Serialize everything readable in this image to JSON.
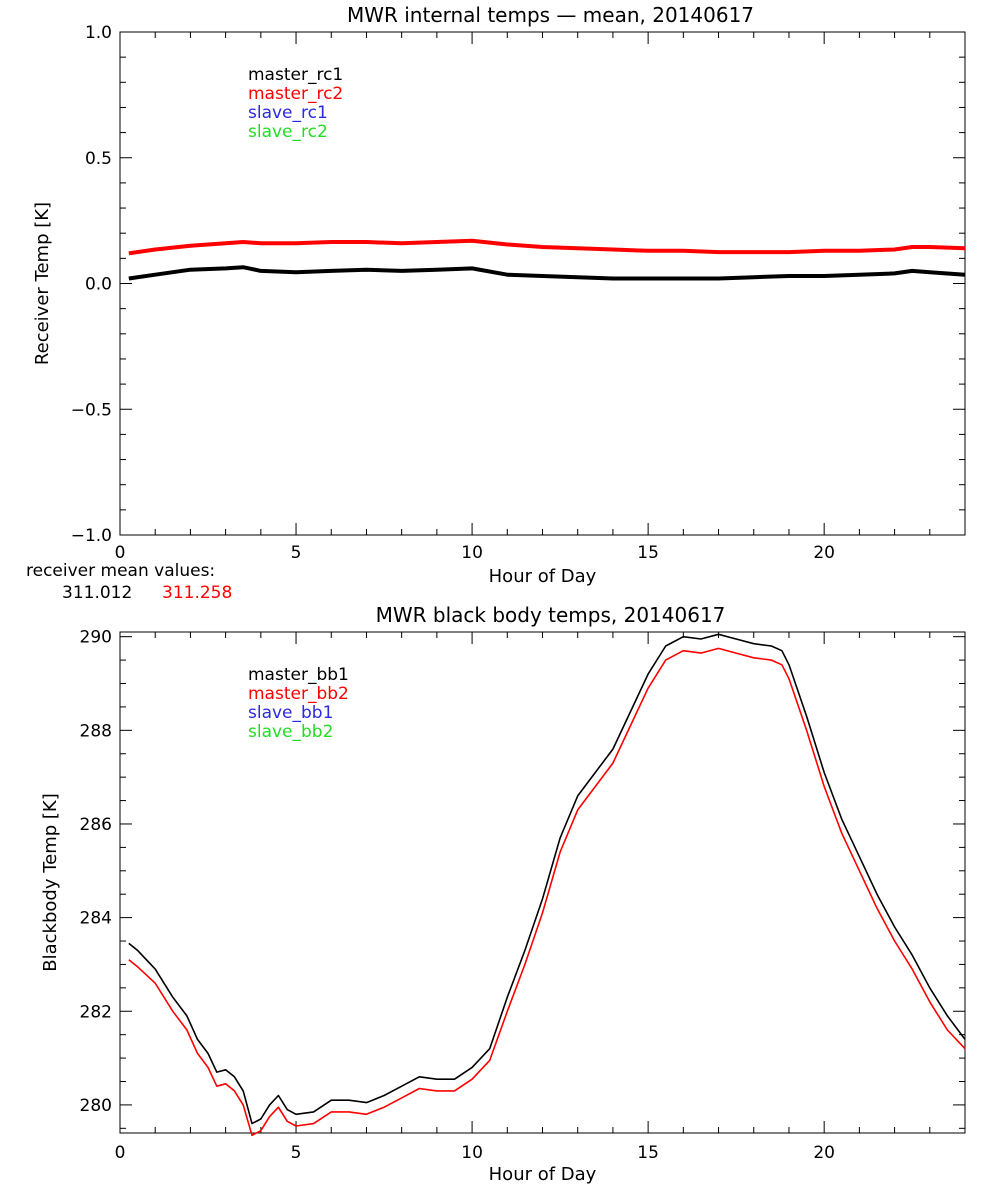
{
  "colors": {
    "black": "#000000",
    "red": "#ff0000",
    "blue": "#2a2ae0",
    "green": "#22dd22"
  },
  "receiver_mean": {
    "label": "receiver mean values:",
    "values": [
      {
        "text": "311.012",
        "color": "#000000"
      },
      {
        "text": "311.258",
        "color": "#ff0000"
      }
    ]
  },
  "chart_data": [
    {
      "type": "line",
      "title": "MWR internal temps — mean, 20140617",
      "xlabel": "Hour of Day",
      "ylabel": "Receiver Temp [K]",
      "xlim": [
        0,
        24
      ],
      "ylim": [
        -1.0,
        1.0
      ],
      "xticks": [
        0,
        5,
        10,
        15,
        20
      ],
      "xtick_labels": [
        "0",
        "5",
        "10",
        "15",
        "20"
      ],
      "yticks": [
        -1.0,
        -0.5,
        0.0,
        0.5,
        1.0
      ],
      "ytick_labels": [
        "−1.0",
        "−0.5",
        "0.0",
        "0.5",
        "1.0"
      ],
      "legend_position": "top-left",
      "legend": [
        {
          "name": "master_rc1",
          "color": "#000000"
        },
        {
          "name": "master_rc2",
          "color": "#ff0000"
        },
        {
          "name": "slave_rc1",
          "color": "#2a2ae0"
        },
        {
          "name": "slave_rc2",
          "color": "#22dd22"
        }
      ],
      "series": [
        {
          "name": "master_rc1",
          "color": "#000000",
          "x": [
            0.25,
            1,
            2,
            3,
            3.5,
            4,
            5,
            6,
            7,
            8,
            9,
            10,
            11,
            12,
            13,
            14,
            15,
            16,
            17,
            18,
            19,
            20,
            21,
            22,
            22.5,
            23,
            24
          ],
          "y": [
            0.02,
            0.035,
            0.055,
            0.06,
            0.065,
            0.05,
            0.045,
            0.05,
            0.055,
            0.05,
            0.055,
            0.06,
            0.035,
            0.03,
            0.025,
            0.02,
            0.02,
            0.02,
            0.02,
            0.025,
            0.03,
            0.03,
            0.035,
            0.04,
            0.05,
            0.045,
            0.035
          ]
        },
        {
          "name": "master_rc2",
          "color": "#ff0000",
          "x": [
            0.25,
            1,
            2,
            3,
            3.5,
            4,
            5,
            6,
            7,
            8,
            9,
            10,
            11,
            12,
            13,
            14,
            15,
            16,
            17,
            18,
            19,
            20,
            21,
            22,
            22.5,
            23,
            24
          ],
          "y": [
            0.12,
            0.135,
            0.15,
            0.16,
            0.165,
            0.16,
            0.16,
            0.165,
            0.165,
            0.16,
            0.165,
            0.17,
            0.155,
            0.145,
            0.14,
            0.135,
            0.13,
            0.13,
            0.125,
            0.125,
            0.125,
            0.13,
            0.13,
            0.135,
            0.145,
            0.145,
            0.14
          ]
        }
      ]
    },
    {
      "type": "line",
      "title": "MWR black body temps, 20140617",
      "xlabel": "Hour of Day",
      "ylabel": "Blackbody Temp [K]",
      "xlim": [
        0,
        24
      ],
      "ylim": [
        279.4,
        290.1
      ],
      "xticks": [
        0,
        5,
        10,
        15,
        20
      ],
      "xtick_labels": [
        "0",
        "5",
        "10",
        "15",
        "20"
      ],
      "yticks": [
        280,
        282,
        284,
        286,
        288,
        290
      ],
      "ytick_labels": [
        "280",
        "282",
        "284",
        "286",
        "288",
        "290"
      ],
      "legend_position": "top-left",
      "legend": [
        {
          "name": "master_bb1",
          "color": "#000000"
        },
        {
          "name": "master_bb2",
          "color": "#ff0000"
        },
        {
          "name": "slave_bb1",
          "color": "#2a2ae0"
        },
        {
          "name": "slave_bb2",
          "color": "#22dd22"
        }
      ],
      "series": [
        {
          "name": "master_bb1",
          "color": "#000000",
          "x": [
            0.25,
            0.5,
            1,
            1.5,
            1.9,
            2.2,
            2.5,
            2.75,
            3,
            3.25,
            3.5,
            3.75,
            4,
            4.25,
            4.5,
            4.75,
            5,
            5.5,
            6,
            6.5,
            7,
            7.5,
            8,
            8.5,
            9,
            9.5,
            10,
            10.5,
            11,
            11.5,
            12,
            12.5,
            13,
            13.5,
            14,
            14.5,
            15,
            15.5,
            16,
            16.5,
            17,
            17.5,
            18,
            18.5,
            18.8,
            19,
            19.5,
            20,
            20.5,
            21,
            21.5,
            22,
            22.5,
            23,
            23.5,
            24
          ],
          "y": [
            283.45,
            283.3,
            282.9,
            282.3,
            281.9,
            281.4,
            281.1,
            280.7,
            280.75,
            280.6,
            280.3,
            279.6,
            279.7,
            280.0,
            280.2,
            279.9,
            279.8,
            279.85,
            280.1,
            280.1,
            280.05,
            280.2,
            280.4,
            280.6,
            280.55,
            280.55,
            280.8,
            281.2,
            282.3,
            283.3,
            284.4,
            285.7,
            286.6,
            287.1,
            287.6,
            288.4,
            289.2,
            289.8,
            290.0,
            289.95,
            290.05,
            289.95,
            289.85,
            289.8,
            289.7,
            289.4,
            288.3,
            287.1,
            286.1,
            285.3,
            284.5,
            283.8,
            283.2,
            282.5,
            281.9,
            281.4
          ]
        },
        {
          "name": "master_bb2",
          "color": "#ff0000",
          "x": [
            0.25,
            0.5,
            1,
            1.5,
            1.9,
            2.2,
            2.5,
            2.75,
            3,
            3.25,
            3.5,
            3.75,
            4,
            4.25,
            4.5,
            4.75,
            5,
            5.5,
            6,
            6.5,
            7,
            7.5,
            8,
            8.5,
            9,
            9.5,
            10,
            10.5,
            11,
            11.5,
            12,
            12.5,
            13,
            13.5,
            14,
            14.5,
            15,
            15.5,
            16,
            16.5,
            17,
            17.5,
            18,
            18.5,
            18.8,
            19,
            19.5,
            20,
            20.5,
            21,
            21.5,
            22,
            22.5,
            23,
            23.5,
            24
          ],
          "y": [
            283.1,
            282.95,
            282.6,
            282.0,
            281.6,
            281.1,
            280.8,
            280.4,
            280.45,
            280.3,
            280.0,
            279.35,
            279.45,
            279.75,
            279.95,
            279.65,
            279.55,
            279.6,
            279.85,
            279.85,
            279.8,
            279.95,
            280.15,
            280.35,
            280.3,
            280.3,
            280.55,
            280.95,
            282.0,
            283.0,
            284.1,
            285.4,
            286.3,
            286.8,
            287.3,
            288.1,
            288.9,
            289.5,
            289.7,
            289.65,
            289.75,
            289.65,
            289.55,
            289.5,
            289.4,
            289.1,
            288.0,
            286.8,
            285.8,
            285.0,
            284.2,
            283.5,
            282.9,
            282.2,
            281.6,
            281.2
          ]
        }
      ]
    }
  ]
}
